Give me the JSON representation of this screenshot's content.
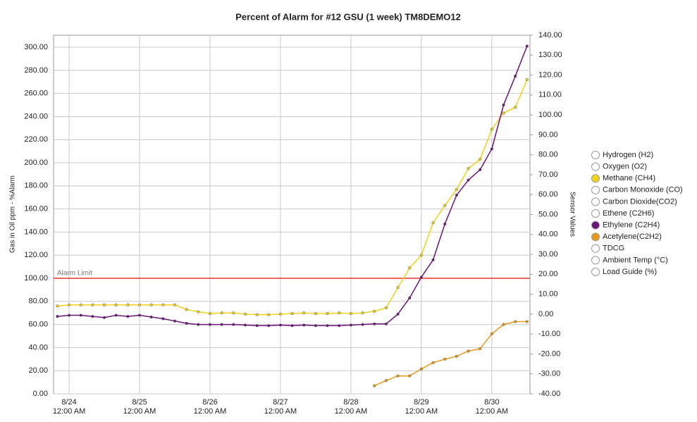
{
  "chart_data": {
    "type": "line",
    "title": "Percent of Alarm for #12 GSU (1 week) TM8DEMO12",
    "y_label": "Gas in Oil ppm - %Alarm",
    "y2_label": "Sensor Values",
    "x": [
      -4,
      0,
      4,
      8,
      12,
      16,
      20,
      24,
      28,
      32,
      36,
      40,
      44,
      48,
      52,
      56,
      60,
      64,
      68,
      72,
      76,
      80,
      84,
      88,
      92,
      96,
      100,
      104,
      108,
      112,
      116,
      120,
      124,
      128,
      132,
      136,
      140,
      144,
      148,
      152,
      156
    ],
    "xlim": [
      -5.3,
      157
    ],
    "xticks": [
      {
        "value": 0,
        "label": "8/24\n12:00 AM"
      },
      {
        "value": 24,
        "label": "8/25\n12:00 AM"
      },
      {
        "value": 48,
        "label": "8/26\n12:00 AM"
      },
      {
        "value": 72,
        "label": "8/27\n12:00 AM"
      },
      {
        "value": 96,
        "label": "8/28\n12:00 AM"
      },
      {
        "value": 120,
        "label": "8/29\n12:00 AM"
      },
      {
        "value": 144,
        "label": "8/30\n12:00 AM"
      }
    ],
    "ylim": [
      0,
      310.4
    ],
    "yticks": [
      {
        "value": 0,
        "label": "0.00"
      },
      {
        "value": 20,
        "label": "20.00"
      },
      {
        "value": 40,
        "label": "40.00"
      },
      {
        "value": 60,
        "label": "60.00"
      },
      {
        "value": 80,
        "label": "80.00"
      },
      {
        "value": 100,
        "label": "100.00"
      },
      {
        "value": 120,
        "label": "120.00"
      },
      {
        "value": 140,
        "label": "140.00"
      },
      {
        "value": 160,
        "label": "160.00"
      },
      {
        "value": 180,
        "label": "180.00"
      },
      {
        "value": 200,
        "label": "200.00"
      },
      {
        "value": 220,
        "label": "220.00"
      },
      {
        "value": 240,
        "label": "240.00"
      },
      {
        "value": 260,
        "label": "260.00"
      },
      {
        "value": 280,
        "label": "280.00"
      },
      {
        "value": 300,
        "label": "300.00"
      }
    ],
    "y2lim": [
      -40,
      140
    ],
    "y2ticks": [
      {
        "value": -40,
        "label": "-40.00"
      },
      {
        "value": -30,
        "label": "-30.00"
      },
      {
        "value": -20,
        "label": "-20.00"
      },
      {
        "value": -10,
        "label": "-10.00"
      },
      {
        "value": 0,
        "label": "0.00"
      },
      {
        "value": 10,
        "label": "10.00"
      },
      {
        "value": 20,
        "label": "20.00"
      },
      {
        "value": 30,
        "label": "30.00"
      },
      {
        "value": 40,
        "label": "40.00"
      },
      {
        "value": 50,
        "label": "50.00"
      },
      {
        "value": 60,
        "label": "60.00"
      },
      {
        "value": 70,
        "label": "70.00"
      },
      {
        "value": 80,
        "label": "80.00"
      },
      {
        "value": 90,
        "label": "90.00"
      },
      {
        "value": 100,
        "label": "100.00"
      },
      {
        "value": 110,
        "label": "110.00"
      },
      {
        "value": 120,
        "label": "120.00"
      },
      {
        "value": 130,
        "label": "130.00"
      },
      {
        "value": 140,
        "label": "140.00"
      }
    ],
    "grid": true,
    "alarm_limit": {
      "value": 100,
      "label": "Alarm Limit",
      "color": "#e8322b"
    },
    "legend": "right",
    "series": [
      {
        "name": "Hydrogen (H2)",
        "color": null
      },
      {
        "name": "Oxygen (O2)",
        "color": null
      },
      {
        "name": "Methane (CH4)",
        "color": "#f2d21b",
        "values": [
          76,
          77,
          77,
          77,
          77,
          77,
          77,
          77,
          77,
          77,
          77,
          73,
          71,
          69.5,
          70,
          70,
          69,
          68.5,
          68.5,
          69,
          69.5,
          70,
          69.5,
          69.5,
          70,
          69.5,
          70,
          71.5,
          74.5,
          92,
          109,
          120,
          148,
          163,
          177,
          195,
          203,
          229,
          243,
          248,
          272
        ]
      },
      {
        "name": "Carbon Monoxide (CO)",
        "color": null
      },
      {
        "name": "Carbon Dioxide(CO2)",
        "color": null
      },
      {
        "name": "Ethene (C2H6)",
        "color": null
      },
      {
        "name": "Ethylene (C2H4)",
        "color": "#6a1477",
        "values": [
          67,
          68,
          68,
          67,
          66,
          68,
          67,
          68,
          66.5,
          65,
          63,
          61,
          60,
          60,
          60,
          60,
          59.5,
          59,
          59,
          59.5,
          59,
          59.5,
          59,
          59,
          59,
          59.5,
          60,
          60.5,
          60.5,
          69,
          83,
          101,
          116,
          147,
          172,
          185,
          194,
          212,
          250,
          275,
          301
        ]
      },
      {
        "name": "Acetylene(C2H2)",
        "color": "#e89a17",
        "values": [
          null,
          null,
          null,
          null,
          null,
          null,
          null,
          null,
          null,
          null,
          null,
          null,
          null,
          null,
          null,
          null,
          null,
          null,
          null,
          null,
          null,
          null,
          null,
          null,
          null,
          null,
          null,
          7,
          11.5,
          15.5,
          15.5,
          21.5,
          27,
          30,
          32.5,
          37,
          39,
          52,
          60,
          62.5,
          62.5
        ]
      },
      {
        "name": "TDCG",
        "color": null
      },
      {
        "name": "Ambient Temp (°C)",
        "color": null
      },
      {
        "name": "Load Guide (%)",
        "color": null
      }
    ]
  }
}
